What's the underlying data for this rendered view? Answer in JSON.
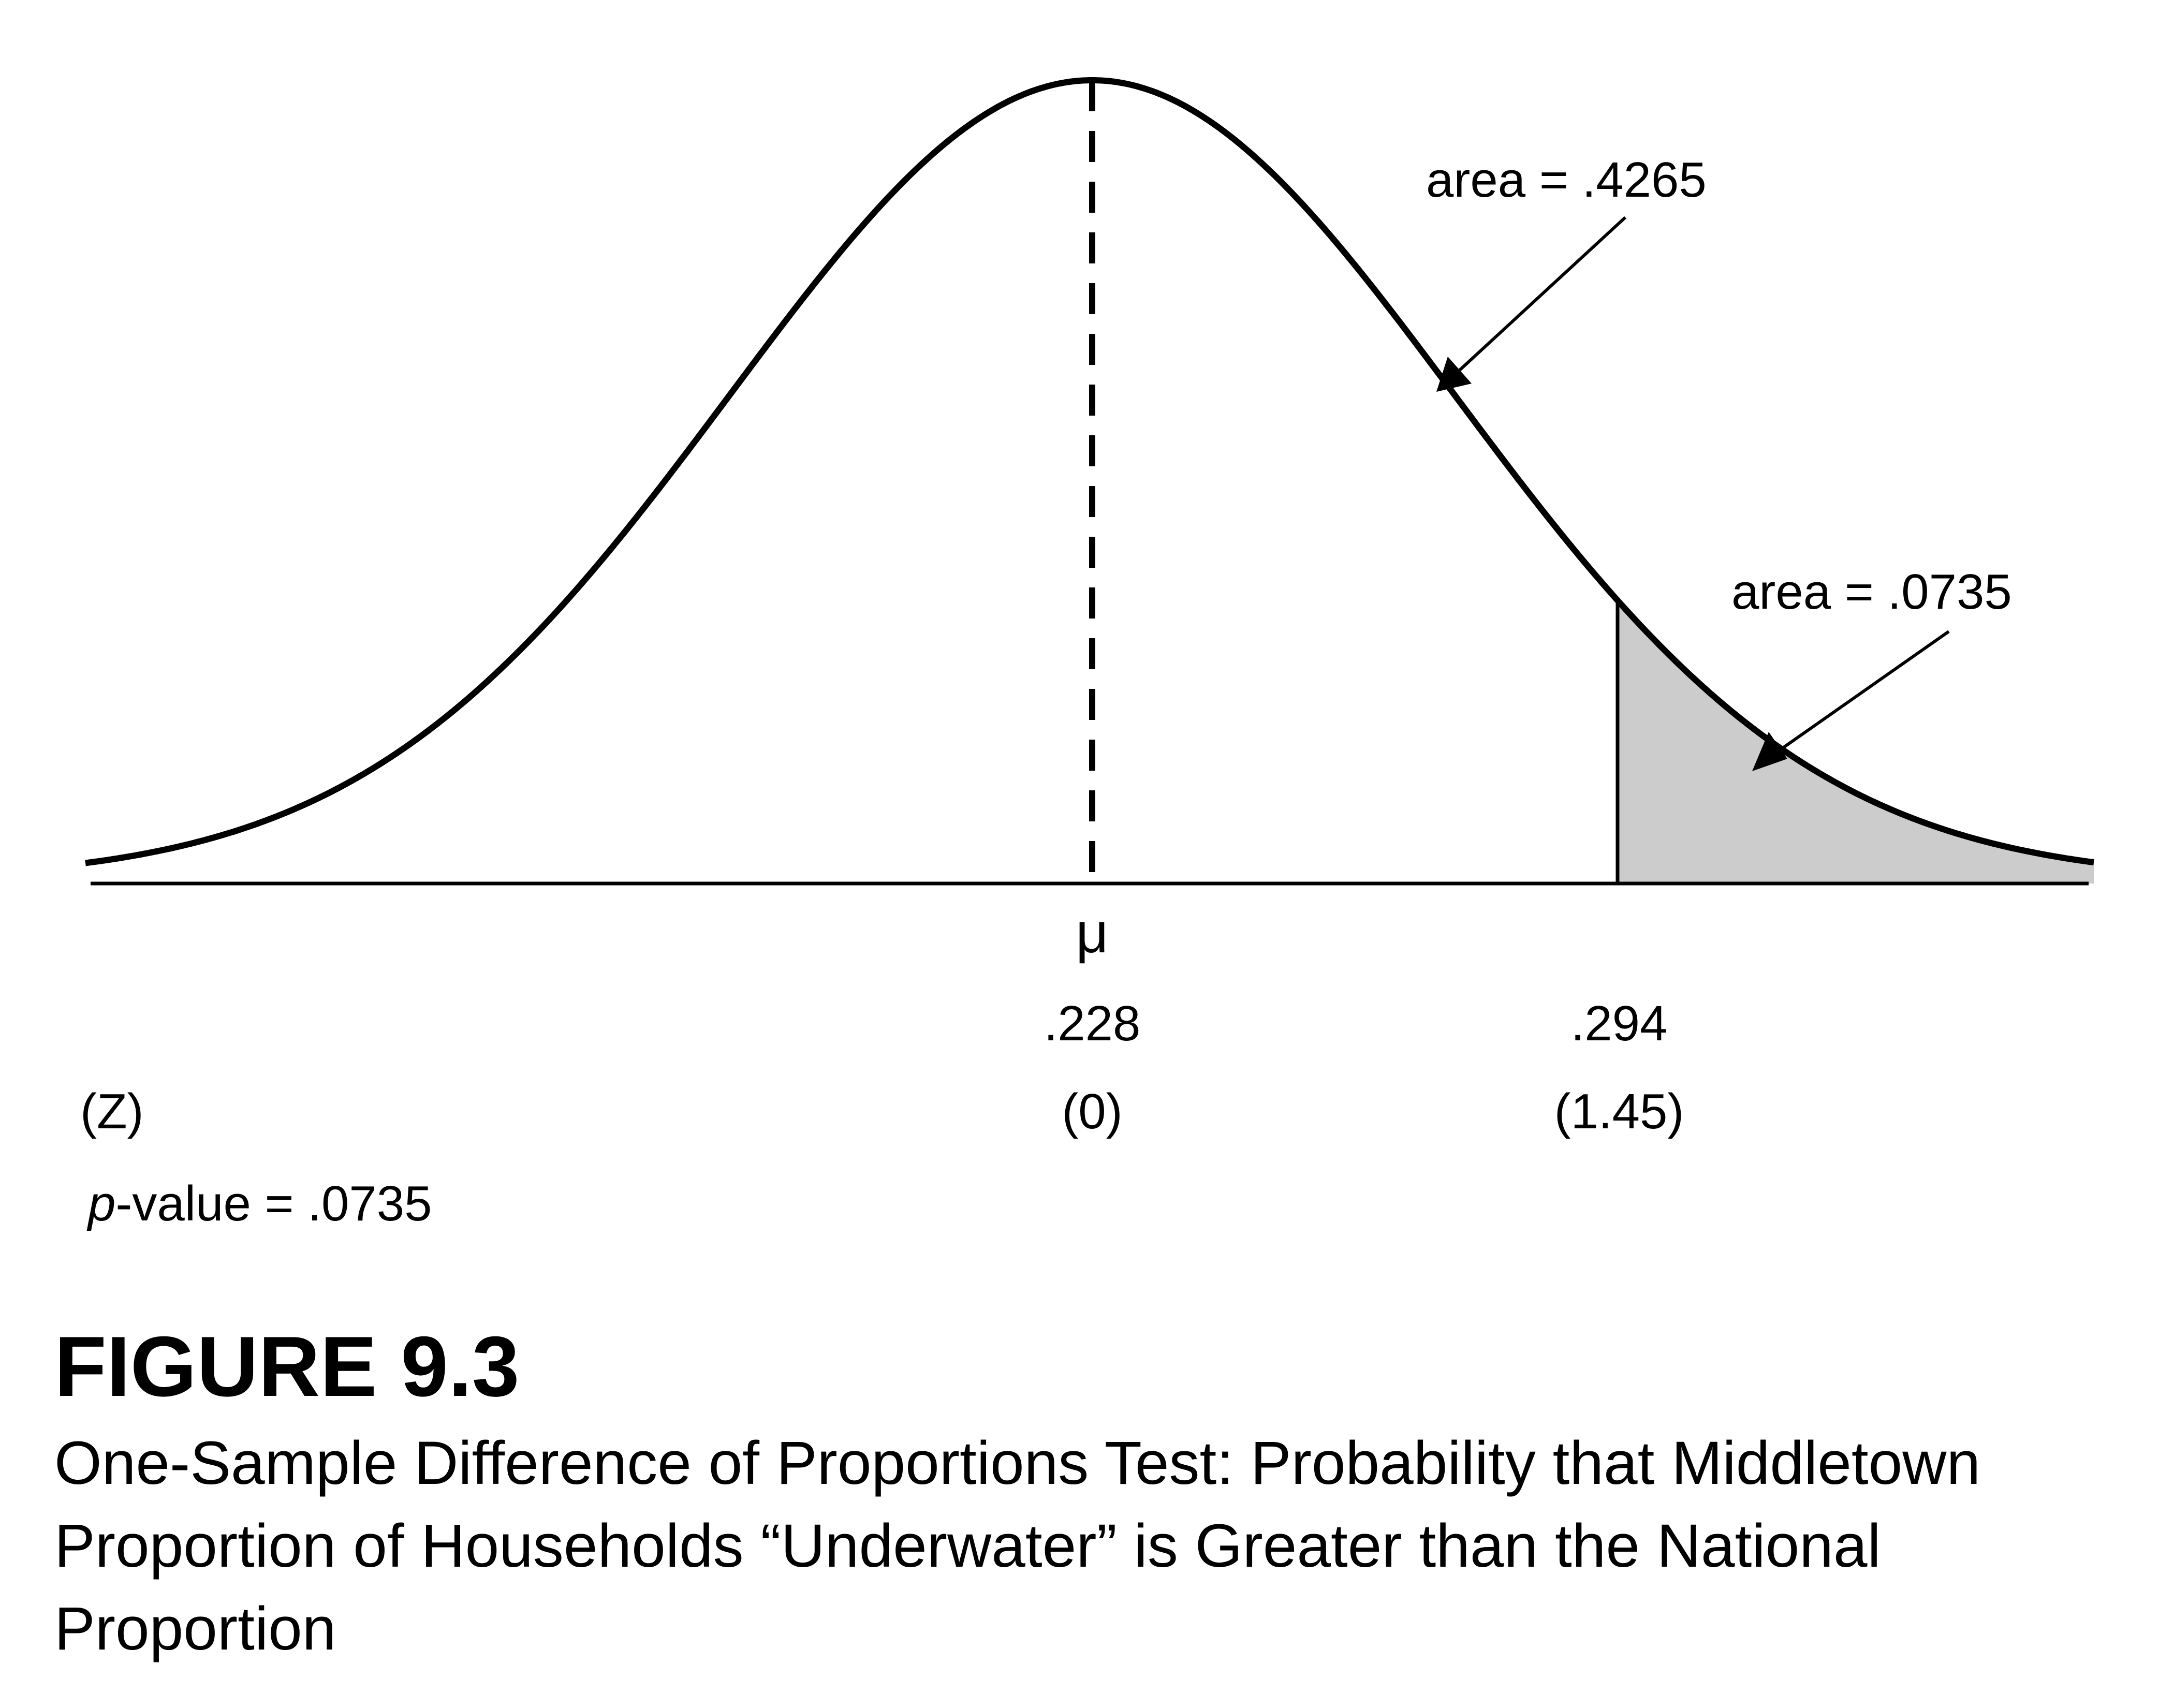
{
  "figure": {
    "number": "FIGURE 9.3",
    "caption": "One-Sample Difference of Proportions Test: Probability that Middletown Proportion of Households “Underwater” is Greater than the National Proportion"
  },
  "distribution": {
    "type": "normal",
    "mean_symbol": "μ",
    "mean_value": ".228",
    "mean_z": "(0)",
    "test_value": ".294",
    "test_z": "(1.45)",
    "z_values": {
      "mean": 0,
      "test": 1.45
    },
    "z_axis_label": "(Z)",
    "shaded_region": "right tail beyond test value",
    "shade_color": "#cccccc",
    "line_color": "#000000"
  },
  "annotations": {
    "area_between": "area = .4265",
    "area_tail": "area = .0735",
    "p_value_prefix": "p",
    "p_value_rest": "-value = .0735"
  }
}
